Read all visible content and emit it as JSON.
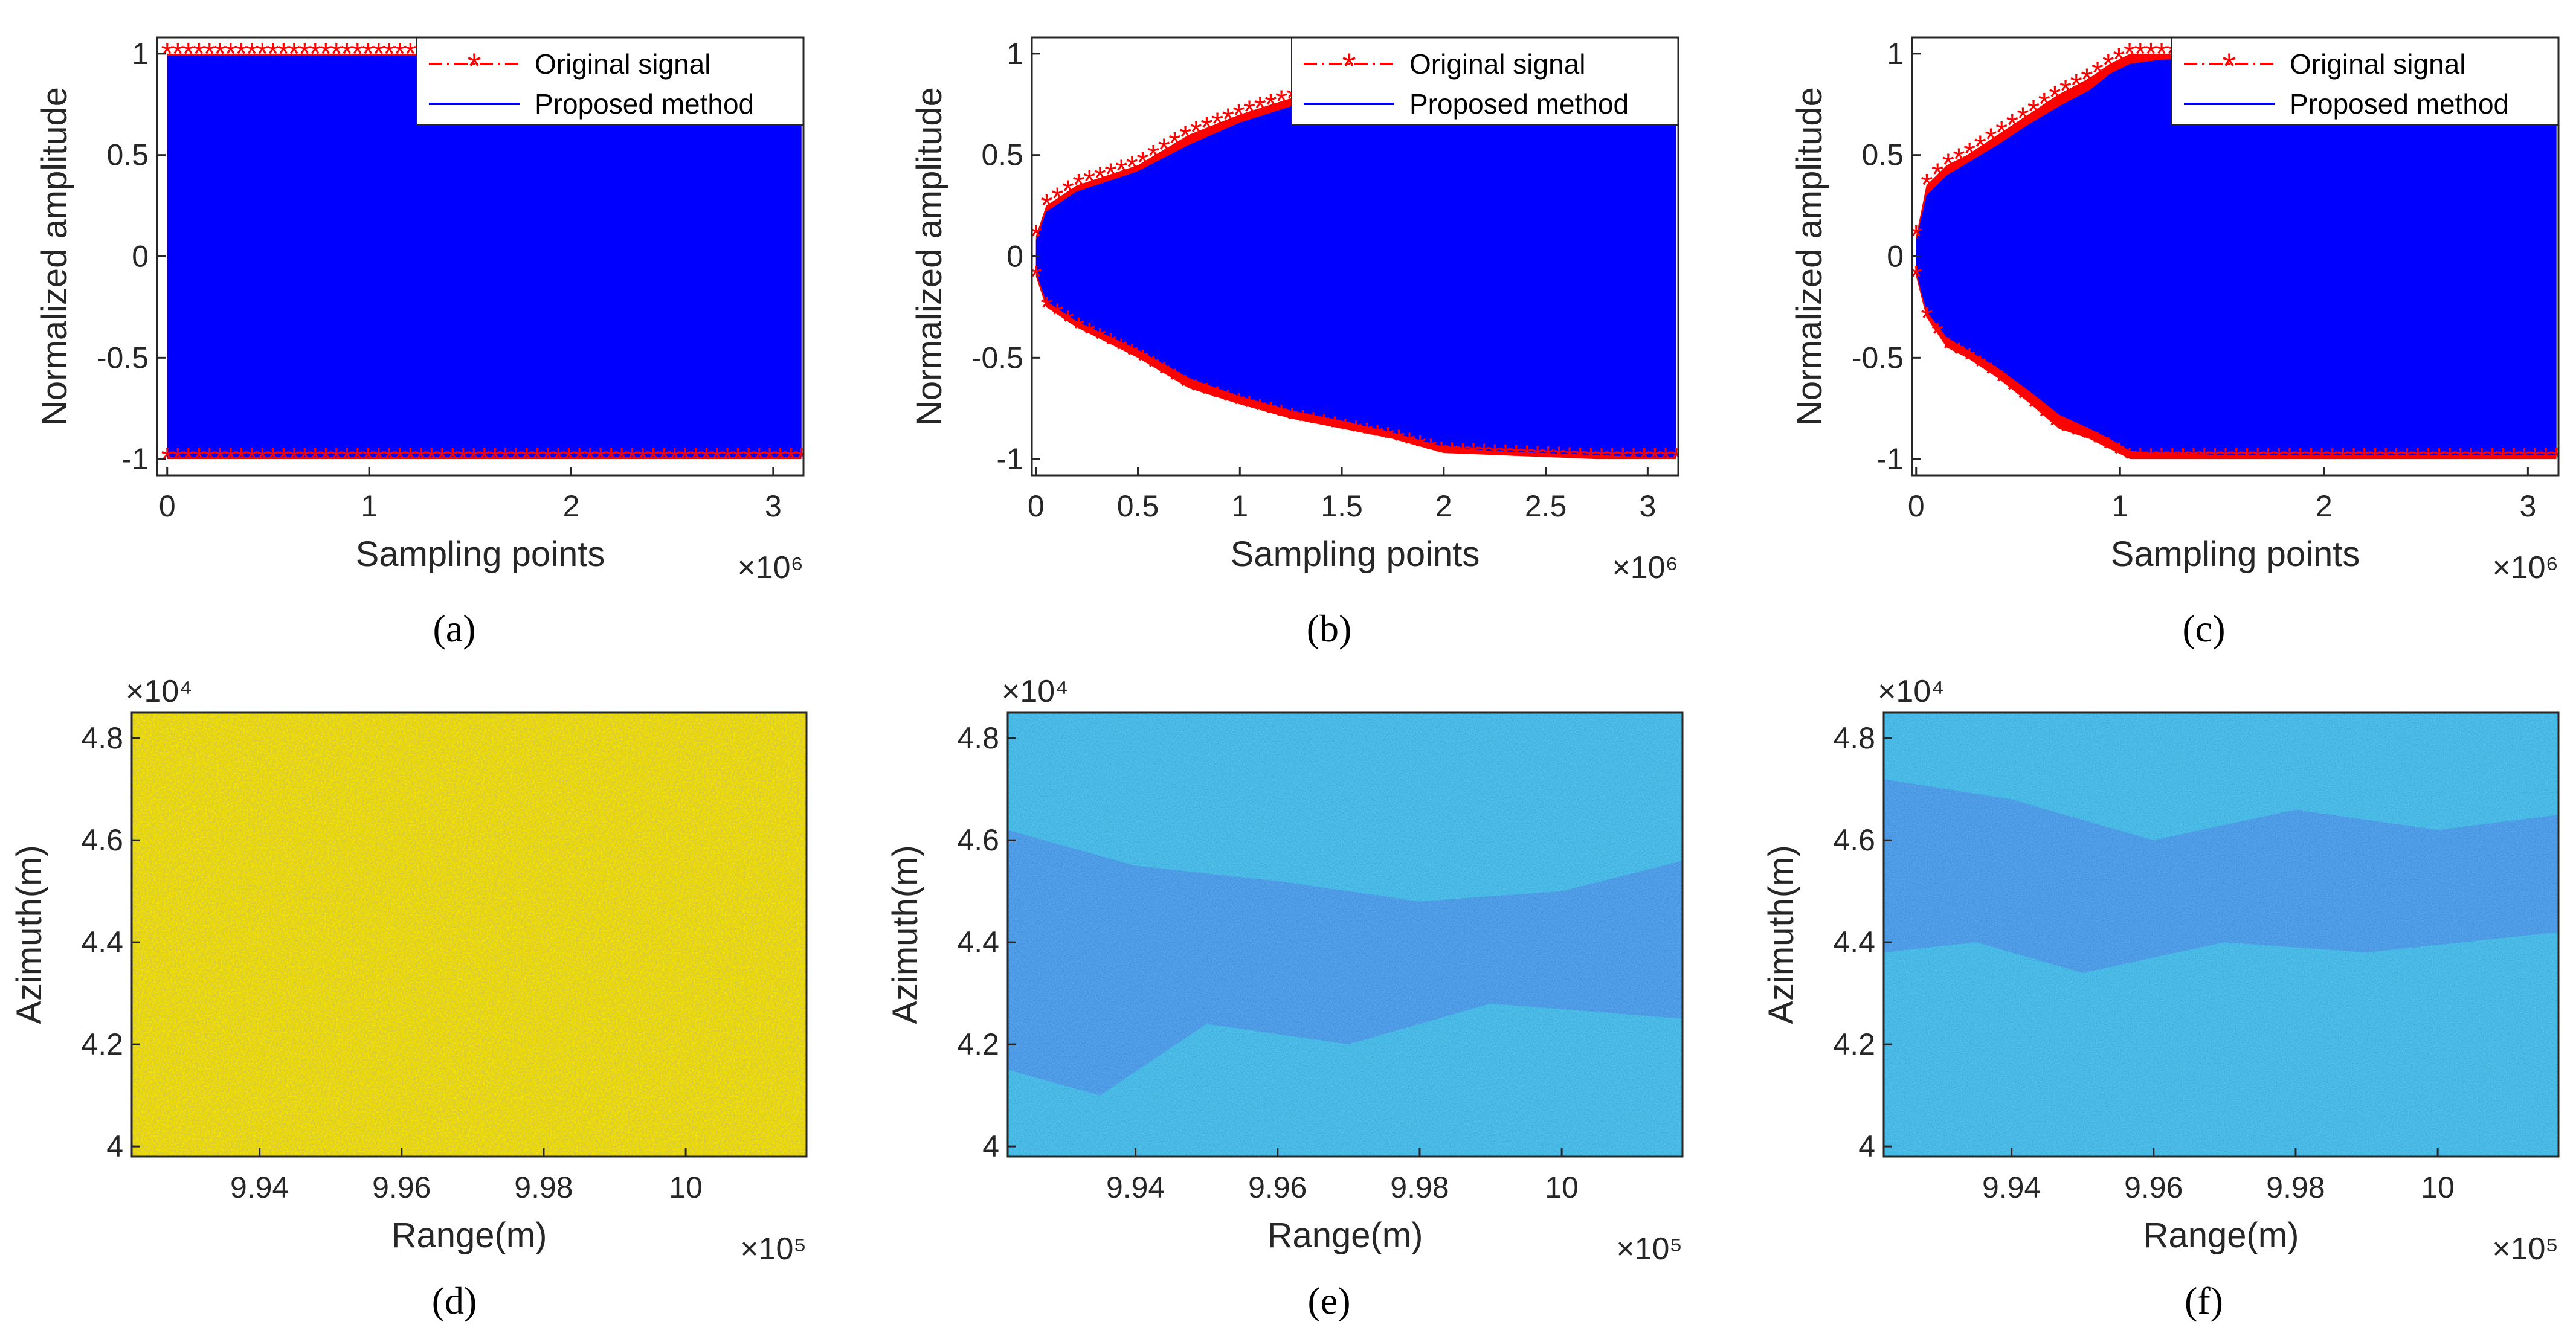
{
  "colors": {
    "original": "#ff0000",
    "proposed": "#0000ff",
    "axis": "#262626",
    "heat_low": "#2f5bd9",
    "heat_mid": "#21a8d8",
    "heat_high": "#e3c21c"
  },
  "chart_data": [
    {
      "panel": "(a)",
      "type": "line",
      "caption": "(a)",
      "xlabel": "Sampling points",
      "ylabel": "Normalized amplitude",
      "x_multiplier": "×10⁶",
      "xlim": [
        -0.05,
        3.15
      ],
      "ylim": [
        -1.08,
        1.08
      ],
      "xticks": [
        0,
        1,
        2,
        3
      ],
      "xticklabels": [
        "0",
        "1",
        "2",
        "3"
      ],
      "yticks": [
        -1,
        -0.5,
        0,
        0.5,
        1
      ],
      "yticklabels": [
        "-1",
        "-0.5",
        "0",
        "0.5",
        "1"
      ],
      "legend": {
        "placement": "top-right",
        "entries": [
          "Original signal",
          "Proposed method"
        ]
      },
      "series": [
        {
          "name": "Original signal",
          "style": "dash-dot with asterisk markers",
          "envelope_x": [
            0,
            0.5,
            1,
            1.5,
            2,
            2.5,
            3,
            3.14
          ],
          "upper": [
            1,
            1,
            1,
            1,
            1,
            1,
            1,
            1
          ],
          "lower": [
            -1,
            -1,
            -1,
            -1,
            -1,
            -1,
            -1,
            -1
          ]
        },
        {
          "name": "Proposed method",
          "style": "solid",
          "envelope_x": [
            0,
            0.5,
            1,
            1.5,
            2,
            2.5,
            3,
            3.14
          ],
          "upper": [
            0.99,
            0.99,
            0.99,
            0.99,
            0.99,
            0.99,
            0.99,
            0.99
          ],
          "lower": [
            -0.99,
            -0.99,
            -0.99,
            -0.99,
            -0.99,
            -0.99,
            -0.99,
            -0.99
          ]
        }
      ]
    },
    {
      "panel": "(b)",
      "type": "line",
      "caption": "(b)",
      "xlabel": "Sampling points",
      "ylabel": "Normalized amplitude",
      "x_multiplier": "×10⁶",
      "xlim": [
        -0.02,
        3.15
      ],
      "ylim": [
        -1.08,
        1.08
      ],
      "xticks": [
        0,
        0.5,
        1,
        1.5,
        2,
        2.5,
        3
      ],
      "xticklabels": [
        "0",
        "0.5",
        "1",
        "1.5",
        "2",
        "2.5",
        "3"
      ],
      "yticks": [
        -1,
        -0.5,
        0,
        0.5,
        1
      ],
      "yticklabels": [
        "-1",
        "-0.5",
        "0",
        "0.5",
        "1"
      ],
      "legend": {
        "placement": "top-right",
        "entries": [
          "Original signal",
          "Proposed method"
        ]
      },
      "series": [
        {
          "name": "Original signal",
          "style": "dash-dot with asterisk markers",
          "envelope_x": [
            0,
            0.05,
            0.2,
            0.5,
            0.75,
            1.0,
            1.25,
            1.5,
            1.75,
            2.0,
            2.25,
            2.5,
            2.75,
            3.0,
            3.14
          ],
          "upper": [
            0.1,
            0.25,
            0.35,
            0.45,
            0.6,
            0.7,
            0.78,
            0.83,
            0.88,
            0.9,
            0.93,
            0.95,
            0.97,
            0.98,
            1.0
          ],
          "lower": [
            -0.1,
            -0.25,
            -0.35,
            -0.5,
            -0.65,
            -0.73,
            -0.8,
            -0.85,
            -0.9,
            -0.97,
            -0.98,
            -0.99,
            -1.0,
            -1.0,
            -1.0
          ]
        },
        {
          "name": "Proposed method",
          "style": "solid",
          "envelope_x": [
            0,
            0.05,
            0.2,
            0.5,
            0.75,
            1.0,
            1.25,
            1.5,
            1.75,
            2.0,
            2.25,
            2.5,
            2.75,
            3.0,
            3.14
          ],
          "upper": [
            0.08,
            0.22,
            0.32,
            0.42,
            0.55,
            0.66,
            0.74,
            0.79,
            0.84,
            0.87,
            0.9,
            0.93,
            0.95,
            0.97,
            0.99
          ],
          "lower": [
            -0.08,
            -0.22,
            -0.32,
            -0.46,
            -0.6,
            -0.69,
            -0.76,
            -0.81,
            -0.87,
            -0.94,
            -0.96,
            -0.97,
            -0.98,
            -0.99,
            -0.99
          ]
        }
      ]
    },
    {
      "panel": "(c)",
      "type": "line",
      "caption": "(c)",
      "xlabel": "Sampling points",
      "ylabel": "Normalized amplitude",
      "x_multiplier": "×10⁶",
      "xlim": [
        -0.02,
        3.15
      ],
      "ylim": [
        -1.08,
        1.08
      ],
      "xticks": [
        0,
        1,
        2,
        3
      ],
      "xticklabels": [
        "0",
        "1",
        "2",
        "3"
      ],
      "yticks": [
        -1,
        -0.5,
        0,
        0.5,
        1
      ],
      "yticklabels": [
        "-1",
        "-0.5",
        "0",
        "0.5",
        "1"
      ],
      "legend": {
        "placement": "top-right",
        "entries": [
          "Original signal",
          "Proposed method"
        ]
      },
      "series": [
        {
          "name": "Original signal",
          "style": "dash-dot with asterisk markers",
          "envelope_x": [
            0,
            0.05,
            0.15,
            0.25,
            0.4,
            0.55,
            0.7,
            0.85,
            0.95,
            1.05,
            1.2,
            1.5,
            2.0,
            2.5,
            3.0,
            3.14
          ],
          "upper": [
            0.1,
            0.35,
            0.45,
            0.5,
            0.6,
            0.7,
            0.8,
            0.88,
            0.95,
            1.0,
            1.0,
            1.0,
            1.0,
            1.0,
            1.0,
            1.0
          ],
          "lower": [
            -0.1,
            -0.3,
            -0.45,
            -0.5,
            -0.6,
            -0.72,
            -0.85,
            -0.9,
            -0.95,
            -1.0,
            -1.0,
            -1.0,
            -1.0,
            -1.0,
            -1.0,
            -1.0
          ]
        },
        {
          "name": "Proposed method",
          "style": "solid",
          "envelope_x": [
            0,
            0.05,
            0.15,
            0.25,
            0.4,
            0.55,
            0.7,
            0.85,
            0.95,
            1.05,
            1.2,
            1.5,
            2.0,
            2.5,
            3.0,
            3.14
          ],
          "upper": [
            0.08,
            0.3,
            0.4,
            0.46,
            0.55,
            0.65,
            0.74,
            0.82,
            0.9,
            0.95,
            0.97,
            0.98,
            0.98,
            0.98,
            0.98,
            0.98
          ],
          "lower": [
            -0.08,
            -0.27,
            -0.4,
            -0.46,
            -0.55,
            -0.66,
            -0.78,
            -0.85,
            -0.9,
            -0.96,
            -0.97,
            -0.98,
            -0.98,
            -0.98,
            -0.98,
            -0.98
          ]
        }
      ]
    },
    {
      "panel": "(d)",
      "type": "heatmap",
      "caption": "(d)",
      "xlabel": "Range(m)",
      "ylabel": "Azimuth(m)",
      "x_multiplier": "×10⁵",
      "y_multiplier": "×10⁴",
      "xlim": [
        9.922,
        10.017
      ],
      "ylim": [
        3.98,
        4.85
      ],
      "xticks": [
        9.94,
        9.96,
        9.98,
        10.0
      ],
      "xticklabels": [
        "9.94",
        "9.96",
        "9.98",
        "10"
      ],
      "yticks": [
        4.0,
        4.2,
        4.4,
        4.6,
        4.8
      ],
      "yticklabels": [
        "4",
        "4.2",
        "4.4",
        "4.6",
        "4.8"
      ],
      "image": "noise-like yellow-green texture (unfocused)"
    },
    {
      "panel": "(e)",
      "type": "heatmap",
      "caption": "(e)",
      "xlabel": "Range(m)",
      "ylabel": "Azimuth(m)",
      "x_multiplier": "×10⁵",
      "y_multiplier": "×10⁴",
      "xlim": [
        9.922,
        10.017
      ],
      "ylim": [
        3.98,
        4.85
      ],
      "xticks": [
        9.94,
        9.96,
        9.98,
        10.0
      ],
      "xticklabels": [
        "9.94",
        "9.96",
        "9.98",
        "10"
      ],
      "yticks": [
        4.0,
        4.2,
        4.4,
        4.6,
        4.8
      ],
      "yticklabels": [
        "4",
        "4.2",
        "4.4",
        "4.6",
        "4.8"
      ],
      "image": "blue SAR scene with darker band across the middle"
    },
    {
      "panel": "(f)",
      "type": "heatmap",
      "caption": "(f)",
      "xlabel": "Range(m)",
      "ylabel": "Azimuth(m)",
      "x_multiplier": "×10⁵",
      "y_multiplier": "×10⁴",
      "xlim": [
        9.922,
        10.017
      ],
      "ylim": [
        3.98,
        4.85
      ],
      "xticks": [
        9.94,
        9.96,
        9.98,
        10.0
      ],
      "xticklabels": [
        "9.94",
        "9.96",
        "9.98",
        "10"
      ],
      "yticks": [
        4.0,
        4.2,
        4.4,
        4.6,
        4.8
      ],
      "yticklabels": [
        "4",
        "4.2",
        "4.4",
        "4.6",
        "4.8"
      ],
      "image": "blue SAR scene with dark band in upper half, slightly sharper"
    }
  ]
}
